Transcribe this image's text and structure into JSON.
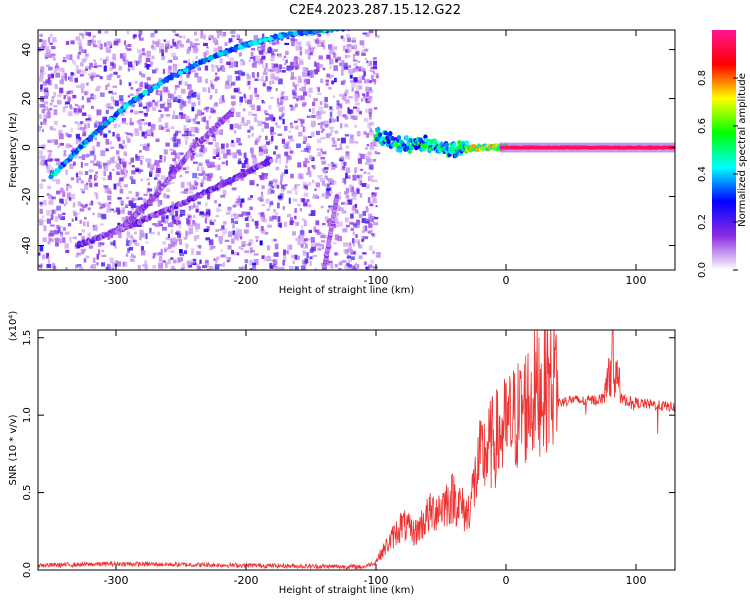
{
  "title": "C2E4.2023.287.15.12.G22",
  "chart_data": [
    {
      "type": "heatmap",
      "xlabel": "Height of straight line (km)",
      "ylabel": "Frequency (Hz)",
      "xlim": [
        -360,
        130
      ],
      "ylim": [
        -50,
        48
      ],
      "xticks": [
        -300,
        -200,
        -100,
        0,
        100
      ],
      "yticks": [
        -40,
        -20,
        0,
        20,
        40
      ],
      "grid": false,
      "features": [
        {
          "name": "main-trace",
          "x": [
            -350,
            -320,
            -290,
            -260,
            -230,
            -200,
            -170,
            -140,
            -120
          ],
          "y": [
            -12,
            4,
            18,
            28,
            36,
            42,
            46,
            48,
            49
          ],
          "amplitude": 0.35
        },
        {
          "name": "secondary-trace-1",
          "x": [
            -330,
            -290,
            -250,
            -210,
            -180
          ],
          "y": [
            -40,
            -32,
            -23,
            -13,
            -5
          ],
          "amplitude": 0.15
        },
        {
          "name": "secondary-trace-2",
          "x": [
            -300,
            -270,
            -240,
            -210
          ],
          "y": [
            -35,
            -20,
            0,
            15
          ],
          "amplitude": 0.12
        },
        {
          "name": "low-height-streak",
          "x": [
            -140,
            -130
          ],
          "y": [
            -50,
            -20
          ],
          "amplitude": 0.1
        },
        {
          "name": "converging-line",
          "x": [
            -100,
            -80,
            -60,
            -40,
            -20,
            0,
            50,
            130
          ],
          "y": [
            5,
            1,
            2,
            -1,
            0,
            0,
            0,
            0
          ],
          "amplitude": 0.9
        }
      ],
      "noise_region_x": [
        -360,
        -100
      ]
    },
    {
      "type": "colorbar",
      "label": "Normalized spectral amplitude",
      "range": [
        0,
        1
      ],
      "ticks": [
        "0.0",
        "0.2",
        "0.4",
        "0.6",
        "0.8"
      ],
      "tick_values": [
        0.0,
        0.2,
        0.4,
        0.6,
        0.8
      ],
      "colormap": [
        "#ffffff",
        "#8a2be2",
        "#0000ff",
        "#00ffff",
        "#00ff00",
        "#ffff00",
        "#ff0000",
        "#ff1493"
      ]
    },
    {
      "type": "line",
      "xlabel": "Height of straight line (km)",
      "ylabel": "SNR (10 * v/v)",
      "scale_label": "(x10⁴)",
      "xlim": [
        -360,
        130
      ],
      "ylim": [
        0,
        1.55
      ],
      "xticks": [
        -300,
        -200,
        -100,
        0,
        100
      ],
      "yticks": [
        "0.0",
        "0.5",
        "1.0",
        "1.5"
      ],
      "ytick_values": [
        0.0,
        0.5,
        1.0,
        1.5
      ],
      "color": "#ee3333",
      "series": [
        {
          "x": [
            -360,
            -300,
            -200,
            -110,
            -100,
            -90,
            -80,
            -70,
            -60,
            -50,
            -40,
            -30,
            -20,
            -10,
            0,
            10,
            20,
            30,
            40,
            50,
            60,
            70,
            80,
            90,
            100,
            110,
            120,
            130
          ],
          "y": [
            0.03,
            0.04,
            0.03,
            0.02,
            0.05,
            0.15,
            0.25,
            0.2,
            0.3,
            0.35,
            0.4,
            0.3,
            0.6,
            0.7,
            0.78,
            0.85,
            0.95,
            1.03,
            1.08,
            1.1,
            1.09,
            1.1,
            1.12,
            1.1,
            1.08,
            1.07,
            1.06,
            1.05
          ]
        }
      ]
    }
  ]
}
